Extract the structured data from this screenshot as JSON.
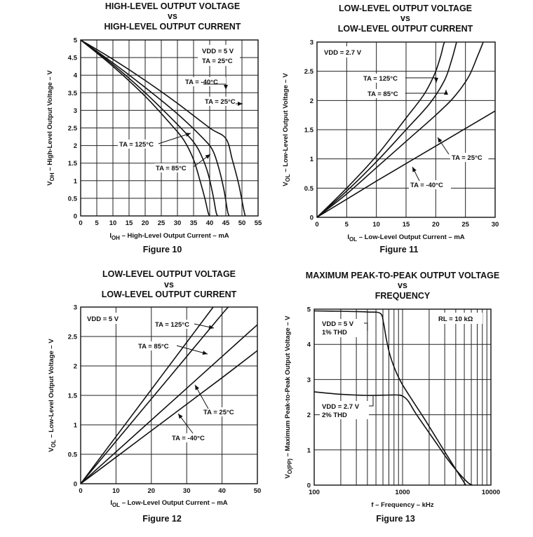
{
  "chart_data": [
    {
      "id": "fig10",
      "type": "line",
      "title": [
        "HIGH-LEVEL OUTPUT VOLTAGE",
        "vs",
        "HIGH-LEVEL OUTPUT CURRENT"
      ],
      "figure_label": "Figure 10",
      "xlabel": "IOH – High-Level Output Current – mA",
      "ylabel": "VOH – High-Level Output Voltage – V",
      "xlim": [
        0,
        55
      ],
      "ylim": [
        0,
        5
      ],
      "xticks": [
        0,
        5,
        10,
        15,
        20,
        25,
        30,
        35,
        40,
        45,
        50,
        55
      ],
      "yticks": [
        0,
        0.5,
        1,
        1.5,
        2,
        2.5,
        3,
        3.5,
        4,
        4.5,
        5
      ],
      "xtick_labels": [
        "0",
        "5",
        "10",
        "15",
        "20",
        "25",
        "30",
        "35",
        "40",
        "45",
        "50",
        "55"
      ],
      "ytick_labels": [
        "0",
        "0.5",
        "1",
        "1.5",
        "2",
        "2.5",
        "3",
        "3.5",
        "4",
        "4.5",
        "5"
      ],
      "conditions": [
        "VDD = 5 V",
        "TA = 25°C"
      ],
      "series": [
        {
          "name": "TA = -40°C",
          "x": [
            0,
            10,
            20,
            30,
            40,
            45,
            47,
            49,
            50.5,
            51
          ],
          "y": [
            5,
            4.45,
            3.85,
            3.2,
            2.5,
            2.2,
            1.6,
            0.9,
            0.2,
            0
          ]
        },
        {
          "name": "TA = 25°C",
          "x": [
            0,
            10,
            20,
            30,
            38,
            41,
            43,
            44.5,
            45.5,
            46
          ],
          "y": [
            5,
            4.35,
            3.65,
            2.9,
            2.2,
            1.85,
            1.3,
            0.7,
            0.15,
            0
          ]
        },
        {
          "name": "TA = 85°C",
          "x": [
            0,
            10,
            20,
            30,
            35,
            37.5,
            39.5,
            41,
            42,
            42.5
          ],
          "y": [
            5,
            4.3,
            3.5,
            2.6,
            2.1,
            1.7,
            1.2,
            0.6,
            0.1,
            0
          ]
        },
        {
          "name": "TA = 125°C",
          "x": [
            0,
            10,
            20,
            28,
            32,
            35,
            37,
            38.5,
            39.5,
            40
          ],
          "y": [
            5,
            4.25,
            3.4,
            2.6,
            2.15,
            1.6,
            1.0,
            0.5,
            0.1,
            0
          ]
        }
      ],
      "annotations": [
        "TA = -40°C",
        "TA = 25°C",
        "TA = 125°C",
        "TA = 85°C"
      ]
    },
    {
      "id": "fig11",
      "type": "line",
      "title": [
        "LOW-LEVEL OUTPUT VOLTAGE",
        "vs",
        "LOW-LEVEL OUTPUT CURRENT"
      ],
      "figure_label": "Figure 11",
      "xlabel": "IOL – Low-Level Output Current – mA",
      "ylabel": "VOL – Low-Level Output Voltage – V",
      "xlim": [
        0,
        30
      ],
      "ylim": [
        0,
        3
      ],
      "xticks": [
        0,
        5,
        10,
        15,
        20,
        25,
        30
      ],
      "yticks": [
        0,
        0.5,
        1,
        1.5,
        2,
        2.5,
        3
      ],
      "xtick_labels": [
        "0",
        "5",
        "10",
        "15",
        "20",
        "25",
        "30"
      ],
      "ytick_labels": [
        "0",
        "0.5",
        "1",
        "1.5",
        "2",
        "2.5",
        "3"
      ],
      "conditions": [
        "VDD = 2.7 V"
      ],
      "series": [
        {
          "name": "TA = 125°C",
          "x": [
            0,
            5,
            10,
            15,
            18,
            19.8,
            20.8,
            21.3,
            21.5
          ],
          "y": [
            0,
            0.5,
            1.05,
            1.7,
            2.1,
            2.45,
            2.75,
            2.95,
            3
          ]
        },
        {
          "name": "TA = 85°C",
          "x": [
            0,
            5,
            10,
            15,
            19,
            21.5,
            22.7,
            23.3,
            23.5
          ],
          "y": [
            0,
            0.45,
            0.95,
            1.5,
            1.95,
            2.35,
            2.7,
            2.92,
            3
          ]
        },
        {
          "name": "TA = 25°C",
          "x": [
            0,
            5,
            10,
            15,
            20,
            23,
            25.5,
            27,
            28
          ],
          "y": [
            0,
            0.4,
            0.85,
            1.3,
            1.75,
            2.05,
            2.4,
            2.75,
            3
          ]
        },
        {
          "name": "TA = -40°C",
          "x": [
            0,
            5,
            10,
            15,
            20,
            25,
            30
          ],
          "y": [
            0,
            0.31,
            0.62,
            0.92,
            1.22,
            1.52,
            1.82
          ]
        }
      ],
      "annotations": [
        "TA = 125°C",
        "TA = 85°C",
        "TA = 25°C",
        "TA = -40°C"
      ]
    },
    {
      "id": "fig12",
      "type": "line",
      "title": [
        "LOW-LEVEL OUTPUT VOLTAGE",
        "vs",
        "LOW-LEVEL OUTPUT CURRENT"
      ],
      "figure_label": "Figure 12",
      "xlabel": "IOL – Low-Level Output Current – mA",
      "ylabel": "VOL – Low-Level Output Voltage – V",
      "xlim": [
        0,
        50
      ],
      "ylim": [
        0,
        3
      ],
      "xticks": [
        0,
        10,
        20,
        30,
        40,
        50
      ],
      "yticks": [
        0,
        0.5,
        1,
        1.5,
        2,
        2.5,
        3
      ],
      "xtick_labels": [
        "0",
        "10",
        "20",
        "30",
        "40",
        "50"
      ],
      "ytick_labels": [
        "0",
        "0.5",
        "1",
        "1.5",
        "2",
        "2.5",
        "3"
      ],
      "conditions": [
        "VDD = 5 V"
      ],
      "series": [
        {
          "name": "TA = 125°C",
          "x": [
            0,
            10,
            20,
            30,
            37.5
          ],
          "y": [
            0,
            0.8,
            1.6,
            2.4,
            3.0
          ]
        },
        {
          "name": "TA = 85°C",
          "x": [
            0,
            10,
            20,
            30,
            40,
            41.8
          ],
          "y": [
            0,
            0.72,
            1.44,
            2.16,
            2.88,
            3.0
          ]
        },
        {
          "name": "TA = 25°C",
          "x": [
            0,
            10,
            20,
            30,
            40,
            50
          ],
          "y": [
            0,
            0.54,
            1.08,
            1.62,
            2.16,
            2.7
          ]
        },
        {
          "name": "TA = -40°C",
          "x": [
            0,
            10,
            20,
            30,
            40,
            50
          ],
          "y": [
            0,
            0.45,
            0.9,
            1.35,
            1.8,
            2.26
          ]
        }
      ],
      "annotations": [
        "TA = 125°C",
        "TA = 85°C",
        "TA = 25°C",
        "TA = -40°C"
      ]
    },
    {
      "id": "fig13",
      "type": "line",
      "xscale": "log",
      "title": [
        "MAXIMUM PEAK-TO-PEAK OUTPUT VOLTAGE",
        "vs",
        "FREQUENCY"
      ],
      "figure_label": "Figure 13",
      "xlabel": "f – Frequency – kHz",
      "ylabel": "VO(PP) – Maximum Peak-to-Peak Output Voltage – V",
      "xlim": [
        100,
        10000
      ],
      "ylim": [
        0,
        5
      ],
      "xticks": [
        100,
        1000,
        10000
      ],
      "yticks": [
        0,
        1,
        2,
        3,
        4,
        5
      ],
      "xtick_labels": [
        "100",
        "1000",
        "10000"
      ],
      "ytick_labels": [
        "0",
        "1",
        "2",
        "3",
        "4",
        "5"
      ],
      "conditions": [
        "RL = 10 kΩ"
      ],
      "series": [
        {
          "name": "VDD = 5 V, 1% THD",
          "x": [
            100,
            200,
            400,
            560,
            610,
            650,
            720,
            850,
            1000,
            1300,
            1700,
            2200,
            3000,
            4000,
            5200
          ],
          "y": [
            4.95,
            4.94,
            4.92,
            4.88,
            4.6,
            4.2,
            3.7,
            3.2,
            2.85,
            2.4,
            1.95,
            1.5,
            0.95,
            0.45,
            0.0
          ]
        },
        {
          "name": "VDD = 2.7 V, 2% THD",
          "x": [
            100,
            200,
            400,
            700,
            900,
            1000,
            1150,
            1400,
            1800,
            2400,
            3200,
            4200,
            5500,
            6200
          ],
          "y": [
            2.65,
            2.58,
            2.55,
            2.56,
            2.56,
            2.53,
            2.4,
            2.05,
            1.65,
            1.2,
            0.75,
            0.38,
            0.07,
            0.0
          ]
        }
      ],
      "annotations": [
        "VDD = 5 V",
        "1% THD",
        "VDD = 2.7 V",
        "2% THD"
      ]
    }
  ]
}
